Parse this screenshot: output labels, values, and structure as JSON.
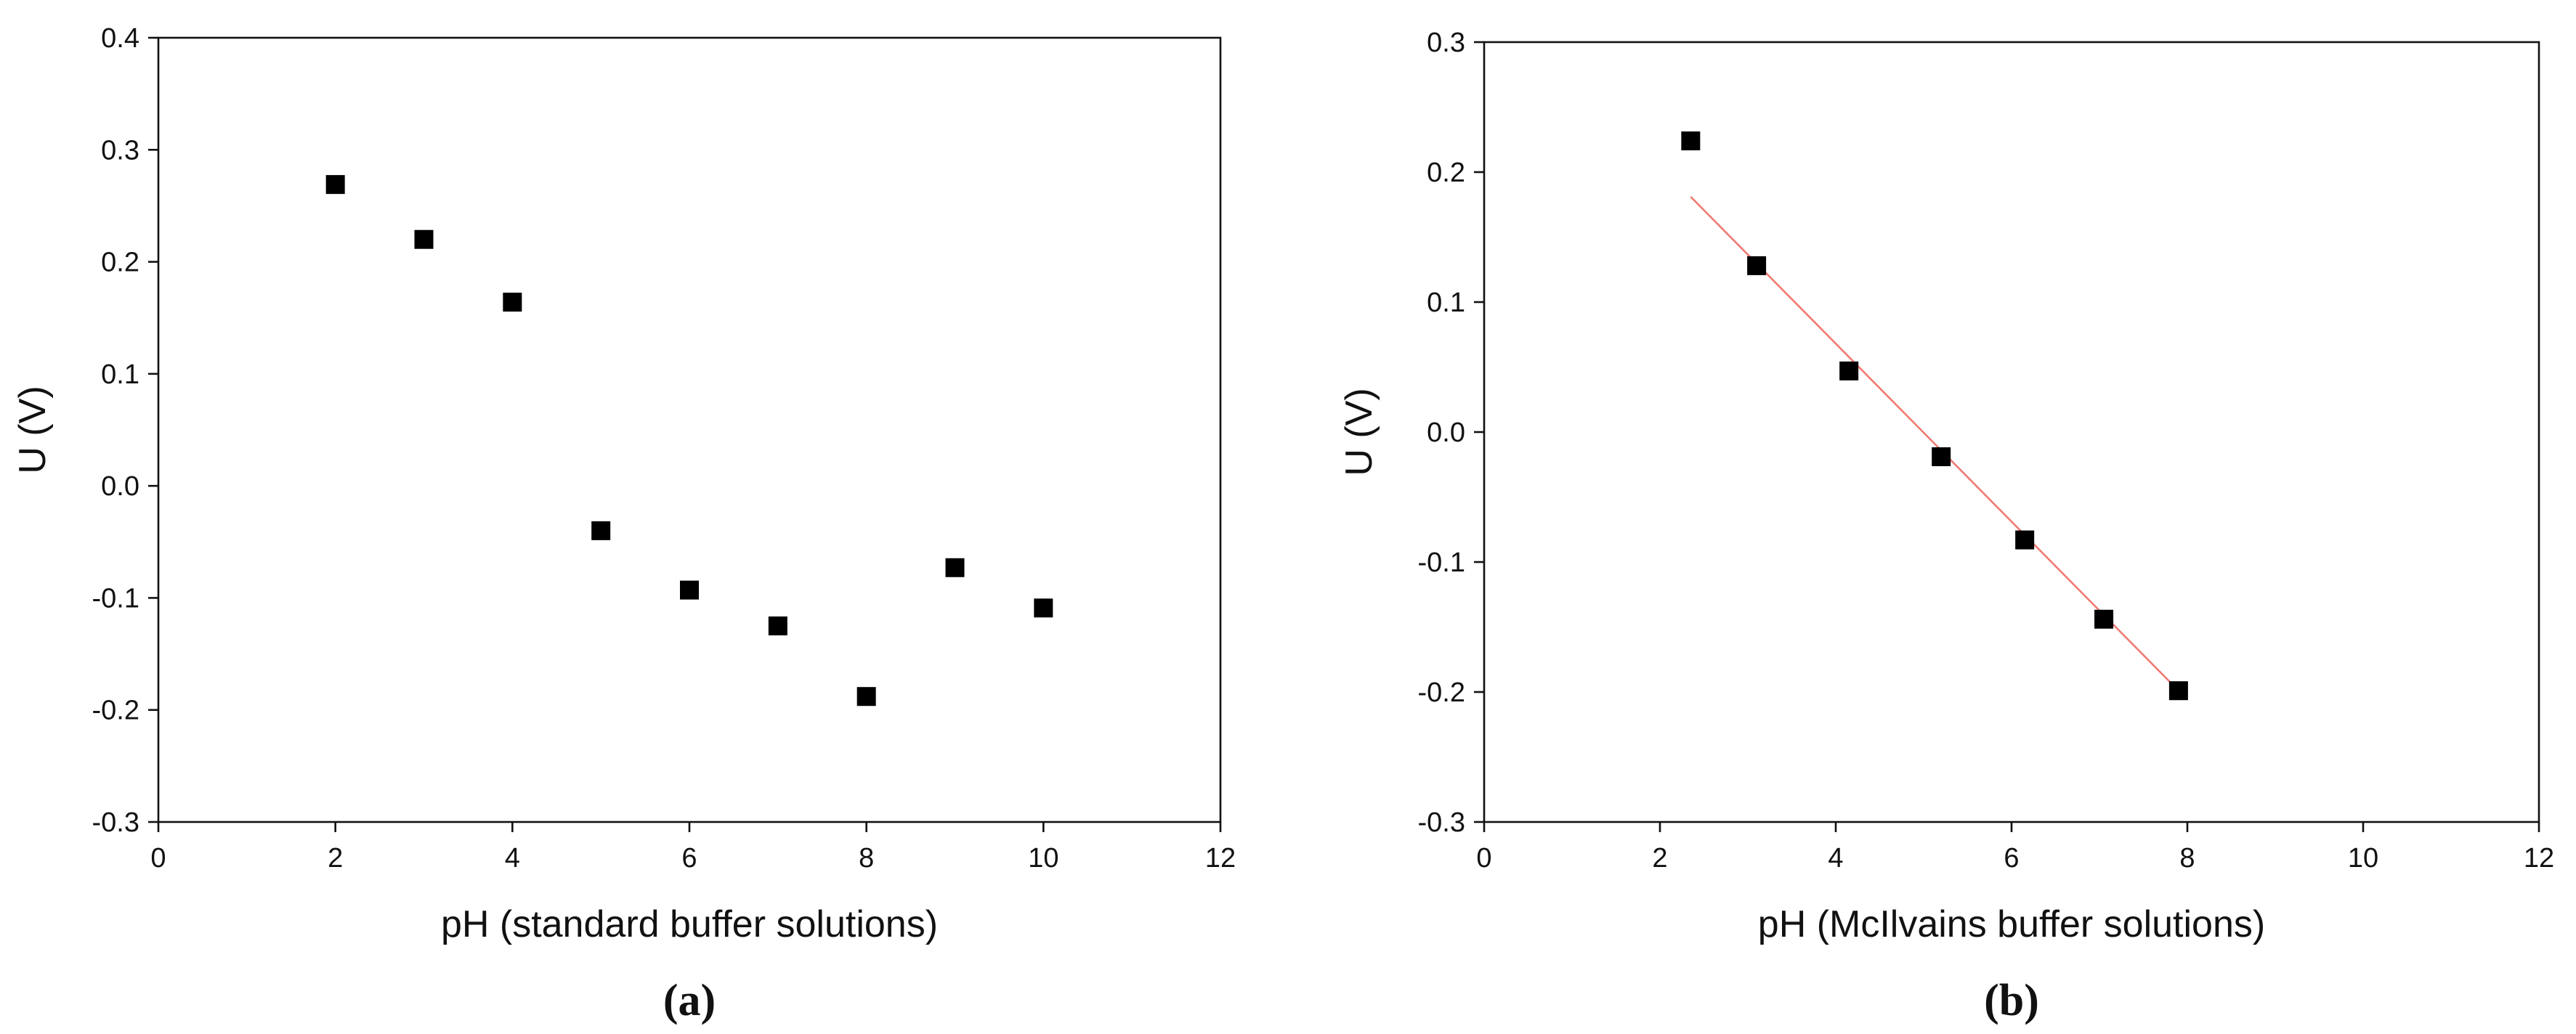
{
  "colors": {
    "axis": "#111111",
    "marker": "#000000",
    "fit_line": "#f07a72",
    "background": "#ffffff"
  },
  "chart_data": [
    {
      "type": "scatter",
      "panel_label": "(a)",
      "xlabel": "pH (standard buffer solutions)",
      "ylabel": "U (V)",
      "xlim": [
        0,
        12
      ],
      "ylim": [
        -0.3,
        0.4
      ],
      "x_ticks": [
        0,
        2,
        4,
        6,
        8,
        10,
        12
      ],
      "y_ticks": [
        -0.3,
        -0.2,
        -0.1,
        0.0,
        0.1,
        0.2,
        0.3,
        0.4
      ],
      "y_tick_labels": [
        "-0.3",
        "-0.2",
        "-0.1",
        "0.0",
        "0.1",
        "0.2",
        "0.3",
        "0.4"
      ],
      "grid": false,
      "marker": "square",
      "series": [
        {
          "x": [
            2,
            3,
            4,
            5,
            6,
            7,
            8,
            9,
            10
          ],
          "y": [
            0.269,
            0.22,
            0.164,
            -0.04,
            -0.093,
            -0.125,
            -0.188,
            -0.073,
            -0.109
          ]
        }
      ]
    },
    {
      "type": "scatter",
      "panel_label": "(b)",
      "xlabel": "pH (McIlvains buffer solutions)",
      "ylabel": "U (V)",
      "xlim": [
        0,
        12
      ],
      "ylim": [
        -0.3,
        0.3
      ],
      "x_ticks": [
        0,
        2,
        4,
        6,
        8,
        10,
        12
      ],
      "y_ticks": [
        -0.3,
        -0.2,
        -0.1,
        0.0,
        0.1,
        0.2,
        0.3
      ],
      "y_tick_labels": [
        "-0.3",
        "-0.2",
        "-0.1",
        "0.0",
        "0.1",
        "0.2",
        "0.3"
      ],
      "grid": false,
      "marker": "square",
      "series": [
        {
          "x": [
            2.35,
            3.1,
            4.15,
            5.2,
            6.15,
            7.05,
            7.9
          ],
          "y": [
            0.224,
            0.128,
            0.047,
            -0.019,
            -0.083,
            -0.144,
            -0.199
          ]
        }
      ],
      "fit_line": {
        "x": [
          2.35,
          7.9
        ],
        "y": [
          0.181,
          -0.199
        ]
      }
    }
  ]
}
